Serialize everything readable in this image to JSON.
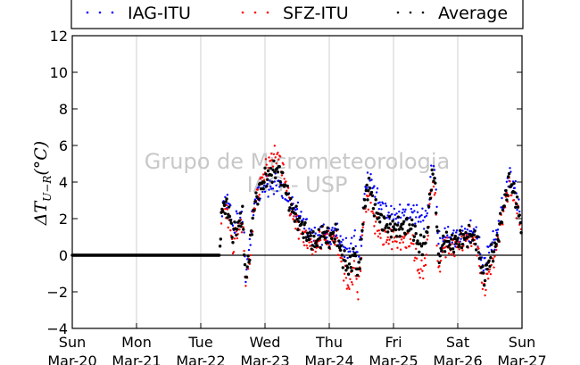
{
  "chart_data": {
    "type": "scatter",
    "ylabel": "ΔT_{U-R}(°C)",
    "ylim": [
      -4,
      12
    ],
    "yticks": [
      -4,
      -2,
      0,
      2,
      4,
      6,
      8,
      10,
      12
    ],
    "xlim_days": [
      0,
      7
    ],
    "xticks": [
      {
        "day": 0,
        "line1": "Sun",
        "line2": "Mar-20"
      },
      {
        "day": 1,
        "line1": "Mon",
        "line2": "Mar-21"
      },
      {
        "day": 2,
        "line1": "Tue",
        "line2": "Mar-22"
      },
      {
        "day": 3,
        "line1": "Wed",
        "line2": "Mar-23"
      },
      {
        "day": 4,
        "line1": "Thu",
        "line2": "Mar-24"
      },
      {
        "day": 5,
        "line1": "Fri",
        "line2": "Mar-25"
      },
      {
        "day": 6,
        "line1": "Sat",
        "line2": "Mar-26"
      },
      {
        "day": 7,
        "line1": "Sun",
        "line2": "Mar-27"
      }
    ],
    "grid": "vertical",
    "legend": "top",
    "watermark": {
      "line1": "Grupo de Micrometeorologia",
      "line2": "IAG - USP"
    },
    "zero_line": true,
    "series": [
      {
        "name": "IAG-ITU",
        "color": "#0000ff",
        "points": [
          [
            2.32,
            2.5
          ],
          [
            2.38,
            3.0
          ],
          [
            2.45,
            2.6
          ],
          [
            2.5,
            1.5
          ],
          [
            2.58,
            2.0
          ],
          [
            2.65,
            2.3
          ],
          [
            2.7,
            -1.0
          ],
          [
            2.75,
            0.2
          ],
          [
            2.82,
            2.6
          ],
          [
            2.9,
            3.4
          ],
          [
            3.0,
            3.8
          ],
          [
            3.1,
            3.7
          ],
          [
            3.2,
            4.0
          ],
          [
            3.3,
            3.4
          ],
          [
            3.4,
            2.8
          ],
          [
            3.5,
            2.4
          ],
          [
            3.6,
            1.8
          ],
          [
            3.7,
            1.2
          ],
          [
            3.8,
            0.9
          ],
          [
            3.9,
            1.2
          ],
          [
            4.0,
            1.0
          ],
          [
            4.1,
            1.4
          ],
          [
            4.2,
            0.6
          ],
          [
            4.3,
            0.2
          ],
          [
            4.4,
            0.9
          ],
          [
            4.45,
            -0.2
          ],
          [
            4.5,
            1.0
          ],
          [
            4.55,
            3.5
          ],
          [
            4.62,
            4.3
          ],
          [
            4.7,
            3.5
          ],
          [
            4.8,
            2.7
          ],
          [
            4.9,
            2.3
          ],
          [
            5.0,
            2.1
          ],
          [
            5.1,
            2.2
          ],
          [
            5.2,
            2.3
          ],
          [
            5.3,
            2.4
          ],
          [
            5.4,
            2.1
          ],
          [
            5.5,
            2.0
          ],
          [
            5.55,
            2.8
          ],
          [
            5.6,
            5.0
          ],
          [
            5.65,
            4.3
          ],
          [
            5.7,
            0.8
          ],
          [
            5.75,
            0.6
          ],
          [
            5.8,
            1.1
          ],
          [
            5.9,
            0.9
          ],
          [
            6.0,
            1.0
          ],
          [
            6.1,
            1.1
          ],
          [
            6.2,
            1.3
          ],
          [
            6.3,
            1.2
          ],
          [
            6.4,
            -0.7
          ],
          [
            6.5,
            0.5
          ],
          [
            6.6,
            1.0
          ],
          [
            6.7,
            2.8
          ],
          [
            6.8,
            4.4
          ],
          [
            6.9,
            3.6
          ],
          [
            7.0,
            1.5
          ]
        ]
      },
      {
        "name": "SFZ-ITU",
        "color": "#ff0000",
        "points": [
          [
            2.32,
            2.2
          ],
          [
            2.38,
            2.6
          ],
          [
            2.45,
            1.8
          ],
          [
            2.5,
            0.4
          ],
          [
            2.58,
            1.4
          ],
          [
            2.65,
            1.8
          ],
          [
            2.7,
            -1.6
          ],
          [
            2.75,
            -0.6
          ],
          [
            2.82,
            2.2
          ],
          [
            2.9,
            3.6
          ],
          [
            3.0,
            4.6
          ],
          [
            3.1,
            5.3
          ],
          [
            3.2,
            5.5
          ],
          [
            3.3,
            4.4
          ],
          [
            3.4,
            2.5
          ],
          [
            3.5,
            1.6
          ],
          [
            3.6,
            1.0
          ],
          [
            3.7,
            0.6
          ],
          [
            3.8,
            0.5
          ],
          [
            3.9,
            1.1
          ],
          [
            4.0,
            0.8
          ],
          [
            4.1,
            1.0
          ],
          [
            4.2,
            -0.5
          ],
          [
            4.3,
            -1.8
          ],
          [
            4.4,
            -0.6
          ],
          [
            4.45,
            -2.2
          ],
          [
            4.5,
            0.2
          ],
          [
            4.55,
            2.5
          ],
          [
            4.62,
            3.2
          ],
          [
            4.7,
            1.8
          ],
          [
            4.8,
            1.1
          ],
          [
            4.9,
            0.9
          ],
          [
            5.0,
            0.9
          ],
          [
            5.1,
            0.8
          ],
          [
            5.2,
            0.8
          ],
          [
            5.3,
            0.7
          ],
          [
            5.4,
            -1.0
          ],
          [
            5.5,
            -0.5
          ],
          [
            5.55,
            1.9
          ],
          [
            5.6,
            4.0
          ],
          [
            5.65,
            3.2
          ],
          [
            5.7,
            -1.2
          ],
          [
            5.75,
            0.2
          ],
          [
            5.8,
            0.5
          ],
          [
            5.9,
            0.3
          ],
          [
            6.0,
            0.6
          ],
          [
            6.1,
            0.8
          ],
          [
            6.2,
            1.0
          ],
          [
            6.3,
            0.5
          ],
          [
            6.4,
            -2.0
          ],
          [
            6.5,
            -0.8
          ],
          [
            6.6,
            0.3
          ],
          [
            6.7,
            2.1
          ],
          [
            6.8,
            3.8
          ],
          [
            6.9,
            2.8
          ],
          [
            7.0,
            1.3
          ]
        ]
      },
      {
        "name": "Average",
        "color": "#000000",
        "points": [
          [
            0.0,
            0.0
          ],
          [
            0.1,
            0.0
          ],
          [
            0.2,
            0.0
          ],
          [
            0.3,
            0.0
          ],
          [
            0.4,
            0.0
          ],
          [
            0.5,
            0.0
          ],
          [
            0.6,
            0.0
          ],
          [
            0.7,
            0.0
          ],
          [
            0.8,
            0.0
          ],
          [
            0.9,
            0.0
          ],
          [
            1.0,
            0.0
          ],
          [
            1.1,
            0.0
          ],
          [
            1.2,
            0.0
          ],
          [
            1.3,
            0.0
          ],
          [
            1.4,
            0.0
          ],
          [
            1.5,
            0.0
          ],
          [
            1.6,
            0.0
          ],
          [
            1.7,
            0.0
          ],
          [
            1.8,
            0.0
          ],
          [
            1.9,
            0.0
          ],
          [
            2.0,
            0.0
          ],
          [
            2.1,
            0.0
          ],
          [
            2.2,
            0.0
          ],
          [
            2.3,
            0.0
          ],
          [
            2.32,
            2.3
          ],
          [
            2.38,
            2.8
          ],
          [
            2.45,
            2.2
          ],
          [
            2.5,
            1.0
          ],
          [
            2.58,
            1.7
          ],
          [
            2.65,
            2.1
          ],
          [
            2.7,
            -1.3
          ],
          [
            2.75,
            -0.2
          ],
          [
            2.82,
            2.4
          ],
          [
            2.9,
            3.5
          ],
          [
            3.0,
            4.2
          ],
          [
            3.1,
            4.5
          ],
          [
            3.2,
            4.7
          ],
          [
            3.3,
            3.9
          ],
          [
            3.4,
            2.7
          ],
          [
            3.5,
            2.0
          ],
          [
            3.6,
            1.4
          ],
          [
            3.7,
            0.9
          ],
          [
            3.8,
            0.7
          ],
          [
            3.9,
            1.2
          ],
          [
            4.0,
            0.9
          ],
          [
            4.1,
            1.2
          ],
          [
            4.2,
            0.0
          ],
          [
            4.3,
            -0.8
          ],
          [
            4.4,
            0.2
          ],
          [
            4.45,
            -1.2
          ],
          [
            4.5,
            0.6
          ],
          [
            4.55,
            3.0
          ],
          [
            4.62,
            3.8
          ],
          [
            4.7,
            2.7
          ],
          [
            4.8,
            1.9
          ],
          [
            4.9,
            1.6
          ],
          [
            5.0,
            1.5
          ],
          [
            5.1,
            1.5
          ],
          [
            5.2,
            1.6
          ],
          [
            5.3,
            1.5
          ],
          [
            5.4,
            0.5
          ],
          [
            5.5,
            0.7
          ],
          [
            5.55,
            2.3
          ],
          [
            5.6,
            4.5
          ],
          [
            5.65,
            3.8
          ],
          [
            5.7,
            -0.2
          ],
          [
            5.75,
            0.4
          ],
          [
            5.8,
            0.8
          ],
          [
            5.9,
            0.6
          ],
          [
            6.0,
            0.8
          ],
          [
            6.1,
            0.9
          ],
          [
            6.2,
            1.1
          ],
          [
            6.3,
            0.8
          ],
          [
            6.4,
            -1.3
          ],
          [
            6.5,
            -0.2
          ],
          [
            6.6,
            0.6
          ],
          [
            6.7,
            2.4
          ],
          [
            6.8,
            4.1
          ],
          [
            6.9,
            3.2
          ],
          [
            7.0,
            1.4
          ]
        ]
      }
    ]
  }
}
